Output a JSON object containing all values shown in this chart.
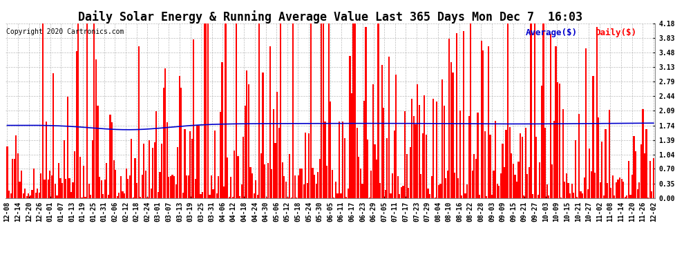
{
  "title": "Daily Solar Energy & Running Average Value Last 365 Days Mon Dec 7  16:03",
  "copyright": "Copyright 2020 Cartronics.com",
  "legend_avg": "Average($)",
  "legend_daily": "Daily($)",
  "ylim": [
    0.0,
    4.18
  ],
  "yticks": [
    0.0,
    0.35,
    0.7,
    1.04,
    1.39,
    1.74,
    2.09,
    2.44,
    2.79,
    3.13,
    3.48,
    3.83,
    4.18
  ],
  "bar_color": "#FF0000",
  "avg_color": "#0000CC",
  "background_color": "#FFFFFF",
  "grid_color": "#AAAAAA",
  "title_fontsize": 12,
  "copyright_fontsize": 7,
  "legend_fontsize": 9,
  "tick_fontsize": 7,
  "x_labels": [
    "12-08",
    "12-14",
    "12-20",
    "12-26",
    "01-01",
    "01-07",
    "01-13",
    "01-19",
    "01-25",
    "01-31",
    "02-06",
    "02-12",
    "02-18",
    "02-24",
    "03-01",
    "03-07",
    "03-13",
    "03-19",
    "03-25",
    "03-31",
    "04-06",
    "04-12",
    "04-18",
    "04-24",
    "04-30",
    "05-06",
    "05-12",
    "05-18",
    "05-24",
    "05-30",
    "06-05",
    "06-11",
    "06-17",
    "06-23",
    "06-29",
    "07-05",
    "07-11",
    "07-17",
    "07-23",
    "07-29",
    "08-04",
    "08-10",
    "08-16",
    "08-22",
    "08-28",
    "09-03",
    "09-09",
    "09-15",
    "09-21",
    "09-27",
    "10-03",
    "10-09",
    "10-15",
    "10-21",
    "10-27",
    "11-02",
    "11-08",
    "11-14",
    "11-20",
    "11-26",
    "12-02"
  ]
}
